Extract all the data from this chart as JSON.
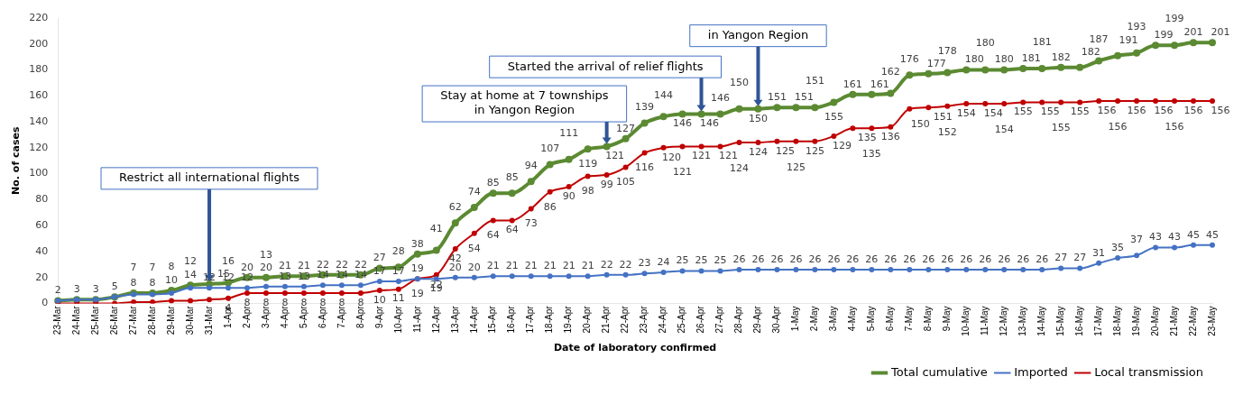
{
  "chart_data": {
    "type": "line",
    "xlabel": "Date of laboratory confirmed",
    "ylabel": "No. of cases",
    "categories": [
      "23-Mar",
      "24-Mar",
      "25-Mar",
      "26-Mar",
      "27-Mar",
      "28-Mar",
      "29-Mar",
      "30-Mar",
      "31-Mar",
      "1-Apr",
      "2-Apr",
      "3-Apr",
      "4-Apr",
      "5-Apr",
      "6-Apr",
      "7-Apr",
      "8-Apr",
      "9-Apr",
      "10-Apr",
      "11-Apr",
      "12-Apr",
      "13-Apr",
      "14-Apr",
      "15-Apr",
      "16-Apr",
      "17-Apr",
      "18-Apr",
      "19-Apr",
      "20-Apr",
      "21-Apr",
      "22-Apr",
      "23-Apr",
      "24-Apr",
      "25-Apr",
      "26-Apr",
      "27-Apr",
      "28-Apr",
      "29-Apr",
      "30-Apr",
      "1-May",
      "2-May",
      "3-May",
      "4-May",
      "5-May",
      "6-May",
      "7-May",
      "8-May",
      "9-May",
      "10-May",
      "11-May",
      "12-May",
      "13-May",
      "14-May",
      "15-May",
      "16-May",
      "17-May",
      "18-May",
      "19-May",
      "20-May",
      "21-May",
      "22-May",
      "23-May"
    ],
    "series": [
      {
        "name": "Total cumulative",
        "color": "#5b8a32",
        "values": [
          2,
          3,
          3,
          5,
          8,
          8,
          10,
          14,
          15,
          16,
          20,
          20,
          21,
          21,
          22,
          22,
          22,
          27,
          28,
          38,
          41,
          62,
          74,
          85,
          85,
          94,
          107,
          111,
          119,
          121,
          127,
          139,
          144,
          146,
          146,
          146,
          150,
          150,
          151,
          151,
          151,
          155,
          161,
          161,
          162,
          176,
          177,
          178,
          180,
          180,
          180,
          181,
          181,
          182,
          182,
          187,
          191,
          193,
          199,
          199,
          201,
          201
        ]
      },
      {
        "name": "Imported",
        "color": "#4472c4",
        "values": [
          2,
          3,
          3,
          5,
          7,
          7,
          8,
          12,
          12,
          12,
          12,
          13,
          13,
          13,
          14,
          14,
          14,
          17,
          17,
          19,
          19,
          20,
          20,
          21,
          21,
          21,
          21,
          21,
          21,
          22,
          22,
          23,
          24,
          25,
          25,
          25,
          26,
          26,
          26,
          26,
          26,
          26,
          26,
          26,
          26,
          26,
          26,
          26,
          26,
          26,
          26,
          26,
          26,
          27,
          27,
          31,
          35,
          37,
          43,
          43,
          45,
          45
        ],
        "value_labels": [
          null,
          null,
          null,
          null,
          "7",
          "7",
          "8",
          "12",
          "12",
          "12",
          "12",
          "13",
          "13",
          "13",
          "14",
          "14",
          "14",
          "17",
          "17",
          "19",
          "19",
          "20",
          "20",
          "21",
          "21",
          "21",
          "21",
          "21",
          "21",
          "22",
          "22",
          "23",
          "24",
          "25",
          "25",
          "25",
          "26",
          "26",
          "26",
          "26",
          "26",
          "26",
          "26",
          "26",
          "26",
          "26",
          "26",
          "26",
          "26",
          "26",
          "26",
          "26",
          "26",
          "27",
          "27",
          "31",
          "35",
          "37",
          "43",
          "43",
          "45",
          "45"
        ]
      },
      {
        "name": "Local transmission",
        "color": "#c00000",
        "values": [
          0,
          0,
          0,
          0,
          1,
          1,
          2,
          2,
          3,
          4,
          8,
          8,
          8,
          8,
          8,
          8,
          8,
          10,
          11,
          19,
          22,
          42,
          54,
          64,
          64,
          73,
          86,
          90,
          98,
          99,
          105,
          116,
          120,
          121,
          121,
          121,
          124,
          124,
          125,
          125,
          125,
          129,
          135,
          135,
          136,
          150,
          151,
          152,
          154,
          154,
          154,
          155,
          155,
          155,
          155,
          156,
          156,
          156,
          156,
          156,
          156,
          156
        ],
        "value_labels": [
          null,
          null,
          null,
          null,
          null,
          null,
          null,
          null,
          null,
          "4",
          "8",
          "8",
          "8",
          "8",
          "8",
          "8",
          "8",
          "10",
          "11",
          "19",
          "22",
          "42",
          "54",
          "64",
          "64",
          "73",
          "86",
          "90",
          "98",
          "99",
          "105",
          "116",
          "120",
          "121",
          "121",
          "121",
          "124",
          "124",
          "125",
          "125",
          "125",
          "129",
          "135",
          "135",
          "136",
          "150",
          "151",
          "152",
          "154",
          "154",
          "154",
          "155",
          "155",
          "155",
          "155",
          "156",
          "156",
          "156",
          "156",
          "156",
          "156",
          "156"
        ]
      }
    ],
    "ylim": [
      0,
      220
    ],
    "yticks": [
      0,
      20,
      40,
      60,
      80,
      100,
      120,
      140,
      160,
      180,
      200,
      220
    ],
    "grid": false,
    "legend": "bottom right",
    "marker": "circle",
    "line_style": "solid",
    "data_labels": true,
    "annotations": [
      {
        "text": "Restrict all international flights",
        "x": "31-Mar",
        "y": 15
      },
      {
        "text": "Stay at home at 7 townships\nin Yangon Region",
        "x": "21-Apr",
        "y": 121
      },
      {
        "text": "Started the arrival of relief flights",
        "x": "26-Apr",
        "y": 146
      },
      {
        "text": "in Yangon Region",
        "x": "29-Apr",
        "y": 150
      }
    ]
  }
}
